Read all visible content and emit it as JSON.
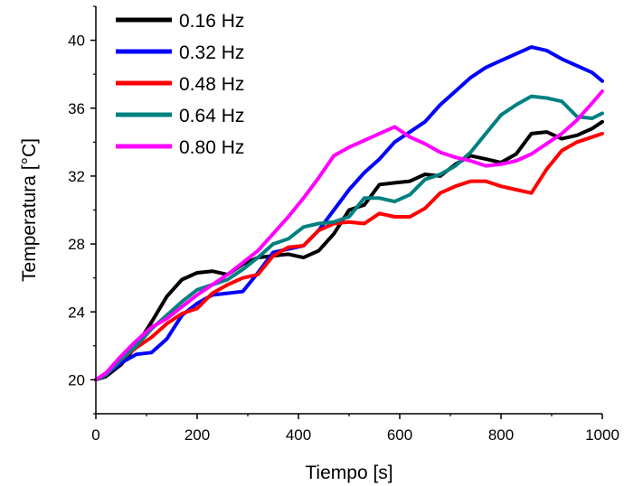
{
  "chart_data": {
    "type": "line",
    "title": "",
    "xlabel": "Tiempo [s]",
    "ylabel": "Temperatura [°C]",
    "xlim": [
      0,
      1000
    ],
    "ylim": [
      18,
      42
    ],
    "xticks": [
      0,
      200,
      400,
      600,
      800,
      1000
    ],
    "yticks": [
      20,
      24,
      28,
      32,
      36,
      40
    ],
    "grid": false,
    "legend_position": "top-left",
    "series": [
      {
        "name": "0.16 Hz",
        "color": "#000000",
        "x": [
          0,
          20,
          50,
          80,
          110,
          140,
          170,
          200,
          230,
          260,
          290,
          320,
          350,
          380,
          410,
          440,
          470,
          500,
          530,
          560,
          590,
          620,
          650,
          680,
          710,
          740,
          770,
          800,
          830,
          860,
          890,
          920,
          950,
          980,
          1000
        ],
        "y": [
          20.0,
          20.2,
          20.9,
          22.0,
          23.4,
          24.9,
          25.9,
          26.3,
          26.4,
          26.2,
          26.8,
          27.2,
          27.3,
          27.4,
          27.2,
          27.6,
          28.6,
          30.0,
          30.3,
          31.5,
          31.6,
          31.7,
          32.1,
          32.0,
          32.7,
          33.2,
          33.0,
          32.8,
          33.3,
          34.5,
          34.6,
          34.2,
          34.4,
          34.8,
          35.2
        ]
      },
      {
        "name": "0.32 Hz",
        "color": "#0000ff",
        "x": [
          0,
          20,
          50,
          80,
          110,
          140,
          170,
          200,
          230,
          260,
          290,
          320,
          350,
          380,
          410,
          440,
          470,
          500,
          530,
          560,
          590,
          620,
          650,
          680,
          710,
          740,
          770,
          800,
          830,
          860,
          890,
          920,
          950,
          980,
          1000
        ],
        "y": [
          20.0,
          20.3,
          21.0,
          21.5,
          21.6,
          22.4,
          23.8,
          24.5,
          25.0,
          25.1,
          25.2,
          26.3,
          27.5,
          27.7,
          27.9,
          28.8,
          30.0,
          31.2,
          32.2,
          33.0,
          34.0,
          34.6,
          35.2,
          36.2,
          37.0,
          37.8,
          38.4,
          38.8,
          39.2,
          39.6,
          39.4,
          38.9,
          38.5,
          38.1,
          37.6
        ]
      },
      {
        "name": "0.48 Hz",
        "color": "#ff0000",
        "x": [
          0,
          20,
          50,
          80,
          110,
          140,
          170,
          200,
          230,
          260,
          290,
          320,
          350,
          380,
          410,
          440,
          470,
          500,
          530,
          560,
          590,
          620,
          650,
          680,
          710,
          740,
          770,
          800,
          830,
          860,
          890,
          920,
          950,
          980,
          1000
        ],
        "y": [
          20.0,
          20.4,
          21.2,
          21.9,
          22.5,
          23.3,
          23.9,
          24.2,
          25.1,
          25.6,
          26.0,
          26.2,
          27.3,
          27.8,
          27.9,
          28.8,
          29.2,
          29.3,
          29.2,
          29.8,
          29.6,
          29.6,
          30.1,
          31.0,
          31.4,
          31.7,
          31.7,
          31.4,
          31.2,
          31.0,
          32.4,
          33.5,
          34.0,
          34.3,
          34.5
        ]
      },
      {
        "name": "0.64 Hz",
        "color": "#008080",
        "x": [
          0,
          20,
          50,
          80,
          110,
          140,
          170,
          200,
          230,
          260,
          290,
          320,
          350,
          380,
          410,
          440,
          470,
          500,
          530,
          560,
          590,
          620,
          650,
          680,
          710,
          740,
          770,
          800,
          830,
          860,
          890,
          920,
          950,
          980,
          1000
        ],
        "y": [
          20.0,
          20.3,
          21.2,
          22.0,
          23.0,
          23.8,
          24.6,
          25.3,
          25.6,
          25.9,
          26.5,
          27.2,
          28.0,
          28.3,
          29.0,
          29.2,
          29.3,
          29.6,
          30.7,
          30.7,
          30.5,
          30.9,
          31.8,
          32.1,
          32.6,
          33.4,
          34.5,
          35.6,
          36.2,
          36.7,
          36.6,
          36.4,
          35.5,
          35.4,
          35.7
        ]
      },
      {
        "name": "0.80 Hz",
        "color": "#ff00ff",
        "x": [
          0,
          20,
          50,
          80,
          110,
          140,
          170,
          200,
          230,
          260,
          290,
          320,
          350,
          380,
          410,
          440,
          470,
          500,
          530,
          560,
          590,
          620,
          650,
          680,
          710,
          740,
          770,
          800,
          830,
          860,
          890,
          920,
          950,
          980,
          1000
        ],
        "y": [
          20.0,
          20.4,
          21.4,
          22.3,
          23.1,
          23.6,
          24.3,
          25.0,
          25.6,
          26.2,
          26.9,
          27.6,
          28.6,
          29.6,
          30.7,
          31.9,
          33.2,
          33.7,
          34.1,
          34.5,
          34.9,
          34.3,
          33.9,
          33.4,
          33.1,
          32.9,
          32.6,
          32.7,
          32.9,
          33.3,
          33.9,
          34.5,
          35.3,
          36.3,
          37.0
        ]
      }
    ]
  }
}
